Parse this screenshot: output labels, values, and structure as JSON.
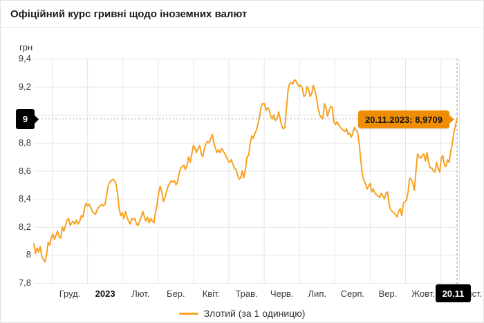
{
  "header": {
    "title": "Офіційний курс гривні щодо іноземних валют"
  },
  "chart": {
    "y_axis_title": "грн",
    "tooltip_text": "20.11.2023: 8,9709",
    "y_badge_label": "9",
    "x_badge_label": "20.11",
    "legend_label": "Злотий (за 1 одиницю)",
    "colors": {
      "line": "#f8a11f",
      "tooltip_bg": "#ef8e06",
      "badge_bg": "#000000",
      "grid": "#e6e6e6",
      "crosshair": "#9a9a9a",
      "tick_text": "#383838"
    }
  },
  "chart_data": {
    "type": "line",
    "title": "Офіційний курс гривні щодо іноземних валют",
    "series": [
      {
        "name": "Злотий (за 1 одиницю)",
        "unit": "грн"
      }
    ],
    "ylabel": "грн",
    "ylim": [
      7.8,
      9.4
    ],
    "ytick_values": [
      9.4,
      9.2,
      9.0,
      8.8,
      8.6,
      8.4,
      8.2,
      8.0,
      7.8
    ],
    "ytick_labels": [
      "9,4",
      "9,2",
      "9",
      "8,8",
      "8,6",
      "8,4",
      "8,2",
      "8",
      "7,8"
    ],
    "xtick_labels": [
      "Груд.",
      "2023",
      "Лют.",
      "Бер.",
      "Квіт.",
      "Трав.",
      "Черв.",
      "Лип.",
      "Серп.",
      "Вер.",
      "Жовт.",
      "Лист."
    ],
    "xtick_bold_label": "2023",
    "grid": true,
    "legend_position": "bottom-center",
    "crosshair_point": {
      "date": "20.11.2023",
      "value": 8.9709,
      "value_label": "8,9709"
    },
    "values": [
      8.08,
      8.01,
      8.05,
      8.02,
      8.06,
      7.99,
      7.97,
      7.95,
      8.0,
      8.09,
      8.07,
      8.12,
      8.15,
      8.11,
      8.14,
      8.17,
      8.13,
      8.12,
      8.2,
      8.17,
      8.21,
      8.25,
      8.26,
      8.21,
      8.23,
      8.24,
      8.22,
      8.25,
      8.22,
      8.24,
      8.28,
      8.27,
      8.33,
      8.37,
      8.35,
      8.36,
      8.34,
      8.31,
      8.3,
      8.29,
      8.32,
      8.34,
      8.35,
      8.36,
      8.35,
      8.36,
      8.42,
      8.49,
      8.52,
      8.53,
      8.54,
      8.53,
      8.51,
      8.44,
      8.33,
      8.28,
      8.3,
      8.26,
      8.31,
      8.27,
      8.24,
      8.22,
      8.26,
      8.25,
      8.26,
      8.22,
      8.21,
      8.24,
      8.27,
      8.31,
      8.27,
      8.24,
      8.27,
      8.23,
      8.26,
      8.24,
      8.23,
      8.3,
      8.36,
      8.44,
      8.49,
      8.45,
      8.38,
      8.41,
      8.45,
      8.49,
      8.51,
      8.53,
      8.52,
      8.53,
      8.5,
      8.52,
      8.58,
      8.62,
      8.63,
      8.64,
      8.61,
      8.64,
      8.7,
      8.66,
      8.72,
      8.78,
      8.76,
      8.73,
      8.76,
      8.78,
      8.72,
      8.7,
      8.76,
      8.79,
      8.81,
      8.8,
      8.83,
      8.86,
      8.8,
      8.76,
      8.73,
      8.75,
      8.73,
      8.76,
      8.74,
      8.72,
      8.7,
      8.67,
      8.66,
      8.68,
      8.65,
      8.62,
      8.61,
      8.57,
      8.54,
      8.55,
      8.6,
      8.55,
      8.61,
      8.7,
      8.71,
      8.8,
      8.85,
      8.83,
      8.87,
      8.89,
      8.94,
      8.99,
      9.06,
      9.08,
      9.08,
      9.03,
      9.05,
      9.04,
      8.99,
      8.97,
      9.0,
      8.96,
      8.97,
      9.02,
      8.97,
      8.92,
      8.9,
      8.91,
      9.05,
      9.18,
      9.22,
      9.23,
      9.22,
      9.25,
      9.24,
      9.22,
      9.2,
      9.21,
      9.19,
      9.13,
      9.14,
      9.2,
      9.18,
      9.13,
      9.15,
      9.21,
      9.17,
      9.12,
      9.05,
      9.0,
      8.98,
      8.97,
      9.08,
      9.05,
      8.99,
      9.03,
      9.06,
      9.05,
      8.95,
      8.93,
      8.95,
      8.93,
      8.91,
      8.9,
      8.89,
      8.88,
      8.9,
      8.86,
      8.87,
      8.84,
      8.87,
      8.91,
      8.89,
      8.88,
      8.8,
      8.68,
      8.58,
      8.53,
      8.51,
      8.47,
      8.49,
      8.51,
      8.45,
      8.47,
      8.44,
      8.43,
      8.42,
      8.41,
      8.44,
      8.42,
      8.4,
      8.44,
      8.45,
      8.36,
      8.32,
      8.31,
      8.3,
      8.29,
      8.27,
      8.31,
      8.33,
      8.28,
      8.37,
      8.38,
      8.39,
      8.45,
      8.55,
      8.54,
      8.51,
      8.46,
      8.6,
      8.72,
      8.7,
      8.69,
      8.71,
      8.72,
      8.67,
      8.73,
      8.66,
      8.62,
      8.62,
      8.6,
      8.59,
      8.66,
      8.62,
      8.59,
      8.69,
      8.71,
      8.64,
      8.63,
      8.68,
      8.66,
      8.74,
      8.79,
      8.87,
      8.92,
      8.9709
    ]
  }
}
